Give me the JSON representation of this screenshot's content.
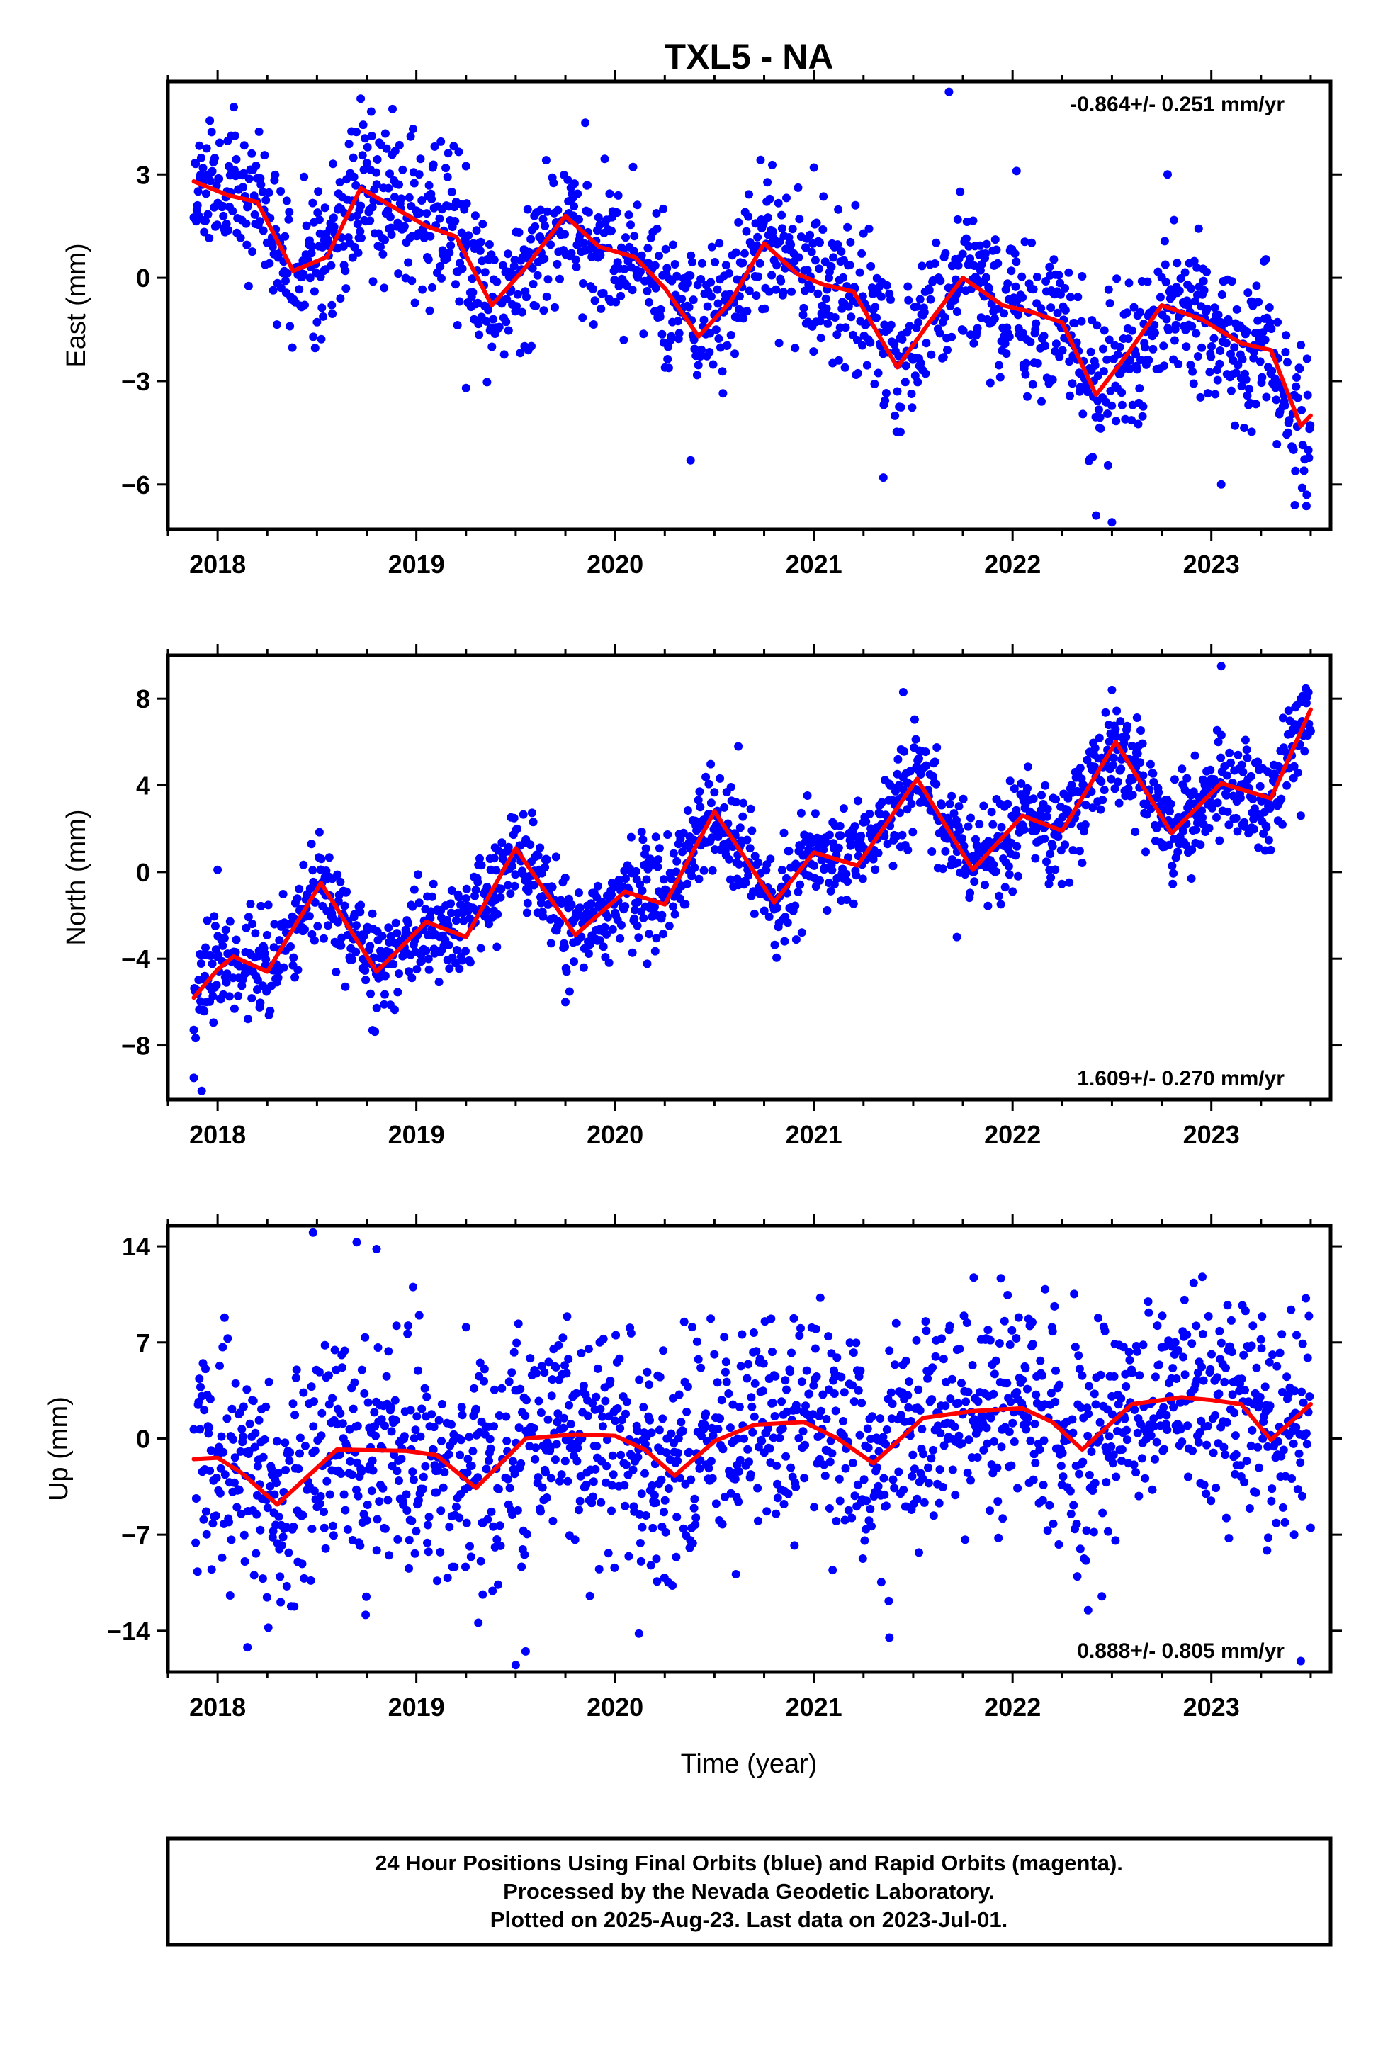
{
  "figure": {
    "title": "TXL5 - NA",
    "xlabel": "Time (year)",
    "footer": [
      "24 Hour Positions Using Final Orbits (blue) and Rapid Orbits (magenta).",
      "Processed by the Nevada Geodetic Laboratory.",
      "Plotted on 2025-Aug-23. Last data on 2023-Jul-01."
    ],
    "colors": {
      "points": "#0000ff",
      "model": "#ff0000",
      "frame": "#000000"
    }
  },
  "chart_data": [
    {
      "type": "scatter",
      "ylabel": "East (mm)",
      "rate_label": "-0.864+/- 0.251 mm/yr",
      "rate_position": "top-right",
      "xlim": [
        2017.75,
        2023.6
      ],
      "ylim": [
        -7.3,
        5.7
      ],
      "xticks": [
        2018,
        2019,
        2020,
        2021,
        2022,
        2023
      ],
      "yticks": [
        3,
        0,
        -3,
        -6
      ],
      "ytick_labels": [
        "3",
        "0",
        "−3",
        "−6"
      ],
      "model_line": {
        "x": [
          2017.88,
          2018.05,
          2018.2,
          2018.38,
          2018.55,
          2018.72,
          2018.9,
          2019.05,
          2019.2,
          2019.38,
          2019.55,
          2019.75,
          2019.92,
          2020.1,
          2020.25,
          2020.42,
          2020.58,
          2020.75,
          2020.92,
          2021.05,
          2021.2,
          2021.42,
          2021.58,
          2021.75,
          2021.95,
          2022.1,
          2022.25,
          2022.42,
          2022.58,
          2022.75,
          2022.95,
          2023.15,
          2023.3,
          2023.45,
          2023.5
        ],
        "y": [
          2.8,
          2.4,
          2.2,
          0.2,
          0.6,
          2.6,
          2.0,
          1.5,
          1.2,
          -0.8,
          0.3,
          1.8,
          0.9,
          0.6,
          -0.3,
          -1.7,
          -0.7,
          1.0,
          0.1,
          -0.2,
          -0.4,
          -2.6,
          -1.3,
          0.0,
          -0.8,
          -1.0,
          -1.3,
          -3.4,
          -2.2,
          -0.8,
          -1.2,
          -1.9,
          -2.1,
          -4.3,
          -4.0
        ]
      },
      "points": {
        "seed": 11,
        "noise_sd": 1.1,
        "noise_range": [
          -2.5,
          2.6
        ],
        "outliers": [
          [
            2018.72,
            5.2
          ],
          [
            2018.88,
            4.9
          ],
          [
            2019.85,
            4.5
          ],
          [
            2019.25,
            -3.2
          ],
          [
            2020.38,
            -5.3
          ],
          [
            2021.0,
            3.2
          ],
          [
            2021.35,
            -5.8
          ],
          [
            2021.68,
            5.4
          ],
          [
            2022.02,
            3.1
          ],
          [
            2022.42,
            -6.9
          ],
          [
            2022.5,
            -7.1
          ],
          [
            2022.78,
            3.0
          ],
          [
            2023.05,
            -6.0
          ],
          [
            2023.42,
            -6.6
          ],
          [
            2023.48,
            -6.3
          ]
        ]
      }
    },
    {
      "type": "scatter",
      "ylabel": "North (mm)",
      "rate_label": "1.609+/- 0.270 mm/yr",
      "rate_position": "bottom-right",
      "xlim": [
        2017.75,
        2023.6
      ],
      "ylim": [
        -10.5,
        10.0
      ],
      "xticks": [
        2018,
        2019,
        2020,
        2021,
        2022,
        2023
      ],
      "yticks": [
        8,
        4,
        0,
        -4,
        -8
      ],
      "ytick_labels": [
        "8",
        "4",
        "0",
        "−4",
        "−8"
      ],
      "model_line": {
        "x": [
          2017.88,
          2018.0,
          2018.08,
          2018.25,
          2018.52,
          2018.8,
          2019.05,
          2019.25,
          2019.5,
          2019.8,
          2020.05,
          2020.25,
          2020.5,
          2020.8,
          2021.0,
          2021.22,
          2021.52,
          2021.8,
          2022.05,
          2022.25,
          2022.52,
          2022.8,
          2023.05,
          2023.3,
          2023.5
        ],
        "y": [
          -5.8,
          -4.5,
          -3.9,
          -4.6,
          -0.5,
          -4.6,
          -2.3,
          -3.0,
          1.1,
          -2.9,
          -0.9,
          -1.5,
          2.8,
          -1.4,
          0.9,
          0.3,
          4.3,
          0.1,
          2.6,
          1.9,
          6.0,
          1.8,
          4.1,
          3.4,
          7.5
        ]
      },
      "points": {
        "seed": 23,
        "noise_sd": 1.15,
        "noise_range": [
          -3.0,
          3.0
        ],
        "outliers": [
          [
            2017.88,
            -9.5
          ],
          [
            2017.92,
            -10.1
          ],
          [
            2018.0,
            0.1
          ],
          [
            2018.78,
            -7.3
          ],
          [
            2019.75,
            -6.0
          ],
          [
            2020.62,
            5.8
          ],
          [
            2021.45,
            8.3
          ],
          [
            2021.72,
            -3.0
          ],
          [
            2022.5,
            8.4
          ],
          [
            2022.9,
            -0.3
          ],
          [
            2023.05,
            9.5
          ],
          [
            2023.45,
            2.6
          ],
          [
            2023.5,
            6.5
          ]
        ]
      }
    },
    {
      "type": "scatter",
      "ylabel": "Up (mm)",
      "rate_label": "0.888+/- 0.805 mm/yr",
      "rate_position": "bottom-right",
      "xlim": [
        2017.75,
        2023.6
      ],
      "ylim": [
        -17.0,
        15.5
      ],
      "xticks": [
        2018,
        2019,
        2020,
        2021,
        2022,
        2023
      ],
      "yticks": [
        14,
        7,
        0,
        -7,
        -14
      ],
      "ytick_labels": [
        "14",
        "7",
        "0",
        "−7",
        "−14"
      ],
      "model_line": {
        "x": [
          2017.88,
          2018.0,
          2018.12,
          2018.3,
          2018.6,
          2018.95,
          2019.1,
          2019.3,
          2019.55,
          2019.8,
          2020.0,
          2020.15,
          2020.3,
          2020.5,
          2020.7,
          2020.95,
          2021.12,
          2021.3,
          2021.55,
          2021.8,
          2022.05,
          2022.2,
          2022.35,
          2022.6,
          2022.85,
          2023.0,
          2023.15,
          2023.3,
          2023.5
        ],
        "y": [
          -1.5,
          -1.4,
          -2.5,
          -4.8,
          -0.8,
          -0.9,
          -1.2,
          -3.6,
          0.0,
          0.3,
          0.2,
          -0.8,
          -2.7,
          -0.2,
          1.0,
          1.2,
          0.0,
          -1.8,
          1.5,
          2.0,
          2.2,
          1.2,
          -0.8,
          2.5,
          3.0,
          2.8,
          2.5,
          -0.1,
          2.5
        ]
      },
      "points": {
        "seed": 37,
        "noise_sd": 4.0,
        "noise_range": [
          -12,
          12
        ],
        "outliers": [
          [
            2018.48,
            15.0
          ],
          [
            2018.7,
            14.3
          ],
          [
            2018.8,
            13.8
          ],
          [
            2018.15,
            -15.2
          ],
          [
            2019.5,
            -16.5
          ],
          [
            2019.55,
            -15.5
          ],
          [
            2020.12,
            -14.2
          ],
          [
            2021.38,
            -14.5
          ],
          [
            2022.38,
            -12.5
          ],
          [
            2023.45,
            -16.2
          ],
          [
            2023.5,
            -6.5
          ]
        ]
      }
    }
  ]
}
